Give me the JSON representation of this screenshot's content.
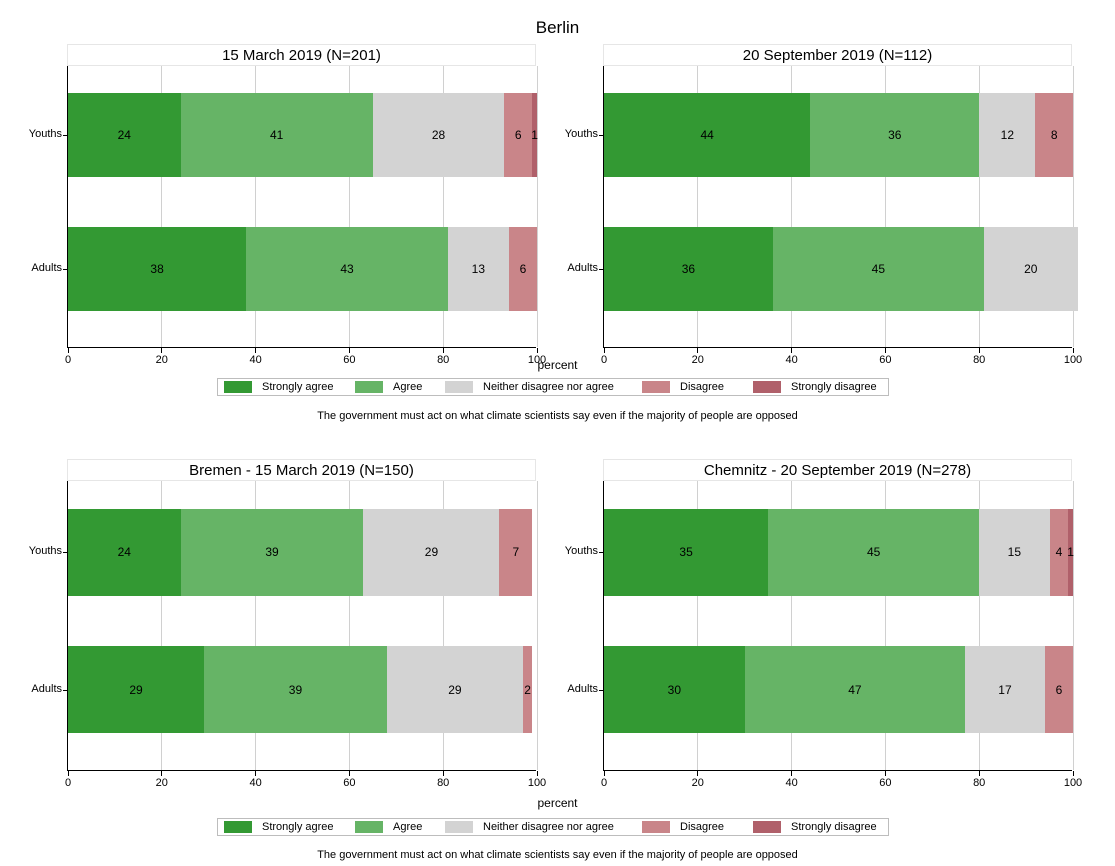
{
  "figure_title": "Berlin",
  "colors": {
    "Strongly agree": "#339933",
    "Agree": "#66b466",
    "Neither disagree nor agree": "#d3d3d3",
    "Disagree": "#c98589",
    "Strongly disagree": "#b0606a"
  },
  "axis": {
    "xlabel": "percent",
    "ticks": [
      "0",
      "20",
      "40",
      "60",
      "80",
      "100"
    ]
  },
  "legend_entries": [
    "Strongly agree",
    "Agree",
    "Neither disagree nor agree",
    "Disagree",
    "Strongly disagree"
  ],
  "note": "The government must act on what climate scientists say even if the majority of people are opposed",
  "chart_data": [
    {
      "type": "bar",
      "orientation": "horizontal-stacked",
      "title": "15 March 2019 (N=201)",
      "categories": [
        "Youths",
        "Adults"
      ],
      "xlabel": "percent",
      "xlim": [
        0,
        100
      ],
      "series": [
        {
          "name": "Strongly agree",
          "values": [
            24,
            38
          ]
        },
        {
          "name": "Agree",
          "values": [
            41,
            43
          ]
        },
        {
          "name": "Neither disagree nor agree",
          "values": [
            28,
            13
          ]
        },
        {
          "name": "Disagree",
          "values": [
            6,
            6
          ]
        },
        {
          "name": "Strongly disagree",
          "values": [
            1,
            0
          ]
        }
      ]
    },
    {
      "type": "bar",
      "orientation": "horizontal-stacked",
      "title": "20 September 2019 (N=112)",
      "categories": [
        "Youths",
        "Adults"
      ],
      "xlabel": "percent",
      "xlim": [
        0,
        100
      ],
      "series": [
        {
          "name": "Strongly agree",
          "values": [
            44,
            36
          ]
        },
        {
          "name": "Agree",
          "values": [
            36,
            45
          ]
        },
        {
          "name": "Neither disagree nor agree",
          "values": [
            12,
            20
          ]
        },
        {
          "name": "Disagree",
          "values": [
            8,
            0
          ]
        },
        {
          "name": "Strongly disagree",
          "values": [
            0,
            0
          ]
        }
      ]
    },
    {
      "type": "bar",
      "orientation": "horizontal-stacked",
      "title": "Bremen - 15 March 2019 (N=150)",
      "categories": [
        "Youths",
        "Adults"
      ],
      "xlabel": "percent",
      "xlim": [
        0,
        100
      ],
      "series": [
        {
          "name": "Strongly agree",
          "values": [
            24,
            29
          ]
        },
        {
          "name": "Agree",
          "values": [
            39,
            39
          ]
        },
        {
          "name": "Neither disagree nor agree",
          "values": [
            29,
            29
          ]
        },
        {
          "name": "Disagree",
          "values": [
            7,
            2
          ]
        },
        {
          "name": "Strongly disagree",
          "values": [
            0,
            0
          ]
        }
      ]
    },
    {
      "type": "bar",
      "orientation": "horizontal-stacked",
      "title": "Chemnitz - 20 September 2019 (N=278)",
      "categories": [
        "Youths",
        "Adults"
      ],
      "xlabel": "percent",
      "xlim": [
        0,
        100
      ],
      "series": [
        {
          "name": "Strongly agree",
          "values": [
            35,
            30
          ]
        },
        {
          "name": "Agree",
          "values": [
            45,
            47
          ]
        },
        {
          "name": "Neither disagree nor agree",
          "values": [
            15,
            17
          ]
        },
        {
          "name": "Disagree",
          "values": [
            4,
            6
          ]
        },
        {
          "name": "Strongly disagree",
          "values": [
            1,
            0
          ]
        }
      ]
    }
  ]
}
